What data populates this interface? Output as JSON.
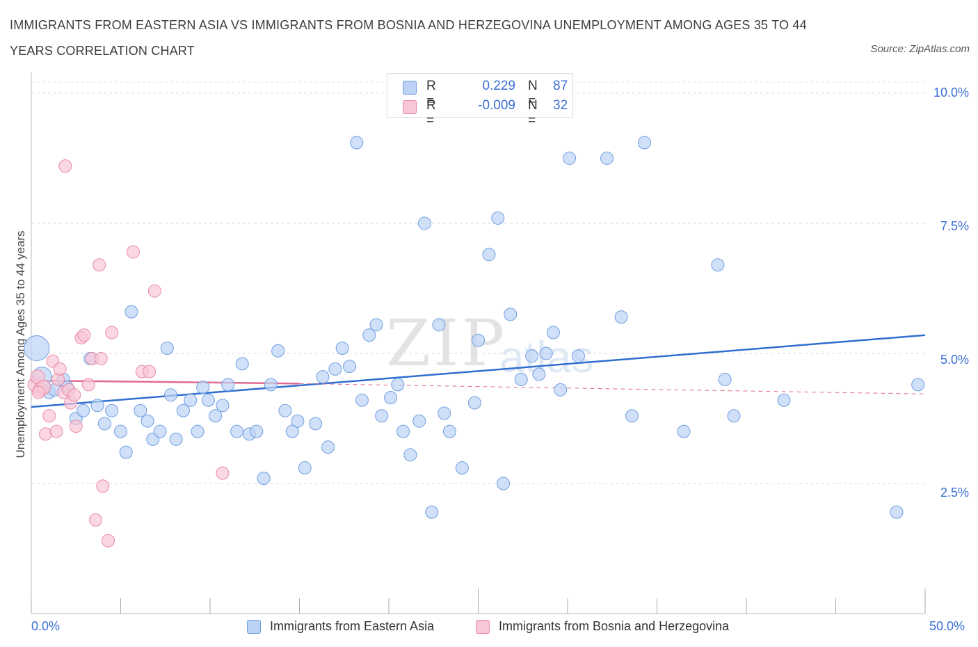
{
  "header": {
    "title": "IMMIGRANTS FROM EASTERN ASIA VS IMMIGRANTS FROM BOSNIA AND HERZEGOVINA UNEMPLOYMENT AMONG AGES 35 TO 44 YEARS CORRELATION CHART",
    "source": "Source: ZipAtlas.com"
  },
  "watermark": {
    "zip": "ZIP",
    "atlas": "atlas"
  },
  "legend": {
    "series1": {
      "r_label": "R =",
      "r_value": "0.229",
      "n_label": "N =",
      "n_value": "87"
    },
    "series2": {
      "r_label": "R =",
      "r_value": "-0.009",
      "n_label": "N =",
      "n_value": "32"
    }
  },
  "colors": {
    "blue_fill": "#bcd3f5",
    "blue_stroke": "#6f9ee0",
    "blue_line": "#2f6fd0",
    "pink_fill": "#f8c6d6",
    "pink_stroke": "#e98aa9",
    "pink_line": "#e06a92",
    "accent_text": "#3b6fd6"
  },
  "chart_data": {
    "type": "scatter",
    "title": "IMMIGRANTS FROM EASTERN ASIA VS IMMIGRANTS FROM BOSNIA AND HERZEGOVINA UNEMPLOYMENT AMONG AGES 35 TO 44 YEARS CORRELATION CHART",
    "xlabel": "",
    "ylabel": "Unemployment Among Ages 35 to 44 years",
    "xlim": [
      0,
      50
    ],
    "ylim": [
      0,
      10.4
    ],
    "x_tick_labels": [
      "0.0%",
      "50.0%"
    ],
    "y_tick_labels": [
      "2.5%",
      "5.0%",
      "7.5%",
      "10.0%"
    ],
    "y_ticks": [
      2.5,
      5.0,
      7.5,
      10.0
    ],
    "grid": true,
    "legend_position": "top-center",
    "series": [
      {
        "name": "Immigrants from Eastern Asia",
        "color": "#bcd3f5",
        "trend": {
          "x": [
            0,
            50
          ],
          "y": [
            3.97,
            5.35
          ]
        },
        "points": [
          [
            0.3,
            5.1,
            18
          ],
          [
            0.6,
            4.55,
            14
          ],
          [
            1.0,
            4.25,
            9
          ],
          [
            1.3,
            4.3,
            9
          ],
          [
            1.8,
            4.5,
            9
          ],
          [
            2.0,
            4.35,
            9
          ],
          [
            2.5,
            3.75,
            9
          ],
          [
            2.9,
            3.9,
            9
          ],
          [
            3.3,
            4.9,
            9
          ],
          [
            3.7,
            4.0,
            9
          ],
          [
            4.1,
            3.65,
            9
          ],
          [
            4.5,
            3.9,
            9
          ],
          [
            5.0,
            3.5,
            9
          ],
          [
            5.3,
            3.1,
            9
          ],
          [
            5.6,
            5.8,
            9
          ],
          [
            6.1,
            3.9,
            9
          ],
          [
            6.5,
            3.7,
            9
          ],
          [
            6.8,
            3.35,
            9
          ],
          [
            7.2,
            3.5,
            9
          ],
          [
            7.6,
            5.1,
            9
          ],
          [
            7.8,
            4.2,
            9
          ],
          [
            8.1,
            3.35,
            9
          ],
          [
            8.5,
            3.9,
            9
          ],
          [
            8.9,
            4.1,
            9
          ],
          [
            9.3,
            3.5,
            9
          ],
          [
            9.6,
            4.35,
            9
          ],
          [
            9.9,
            4.1,
            9
          ],
          [
            10.3,
            3.8,
            9
          ],
          [
            10.7,
            4.0,
            9
          ],
          [
            11.0,
            4.4,
            9
          ],
          [
            11.5,
            3.5,
            9
          ],
          [
            11.8,
            4.8,
            9
          ],
          [
            12.2,
            3.45,
            9
          ],
          [
            12.6,
            3.5,
            9
          ],
          [
            13.0,
            2.6,
            9
          ],
          [
            13.4,
            4.4,
            9
          ],
          [
            13.8,
            5.05,
            9
          ],
          [
            14.2,
            3.9,
            9
          ],
          [
            14.6,
            3.5,
            9
          ],
          [
            14.9,
            3.7,
            9
          ],
          [
            15.3,
            2.8,
            9
          ],
          [
            15.9,
            3.65,
            9
          ],
          [
            16.3,
            4.55,
            9
          ],
          [
            16.6,
            3.2,
            9
          ],
          [
            17.0,
            4.7,
            9
          ],
          [
            17.4,
            5.1,
            9
          ],
          [
            17.8,
            4.75,
            9
          ],
          [
            18.2,
            9.05,
            9
          ],
          [
            18.5,
            4.1,
            9
          ],
          [
            18.9,
            5.35,
            9
          ],
          [
            19.3,
            5.55,
            9
          ],
          [
            19.6,
            3.8,
            9
          ],
          [
            20.1,
            4.15,
            9
          ],
          [
            20.5,
            4.4,
            9
          ],
          [
            20.8,
            3.5,
            9
          ],
          [
            21.2,
            3.05,
            9
          ],
          [
            21.7,
            3.7,
            9
          ],
          [
            22.0,
            7.5,
            9
          ],
          [
            22.4,
            1.95,
            9
          ],
          [
            22.8,
            5.55,
            9
          ],
          [
            23.1,
            3.85,
            9
          ],
          [
            23.4,
            3.5,
            9
          ],
          [
            24.1,
            2.8,
            9
          ],
          [
            24.8,
            4.05,
            9
          ],
          [
            25.0,
            5.25,
            9
          ],
          [
            25.6,
            6.9,
            9
          ],
          [
            26.1,
            7.6,
            9
          ],
          [
            26.4,
            2.5,
            9
          ],
          [
            26.8,
            5.75,
            9
          ],
          [
            27.4,
            4.5,
            9
          ],
          [
            28.0,
            4.95,
            9
          ],
          [
            28.4,
            4.6,
            9
          ],
          [
            28.8,
            5.0,
            9
          ],
          [
            29.2,
            5.4,
            9
          ],
          [
            29.6,
            4.3,
            9
          ],
          [
            30.1,
            8.75,
            9
          ],
          [
            30.6,
            4.95,
            9
          ],
          [
            32.2,
            8.75,
            9
          ],
          [
            33.0,
            5.7,
            9
          ],
          [
            33.6,
            3.8,
            9
          ],
          [
            34.3,
            9.05,
            9
          ],
          [
            36.5,
            3.5,
            9
          ],
          [
            38.4,
            6.7,
            9
          ],
          [
            38.8,
            4.5,
            9
          ],
          [
            39.3,
            3.8,
            9
          ],
          [
            42.1,
            4.1,
            9
          ],
          [
            48.4,
            1.95,
            9
          ],
          [
            49.6,
            4.4,
            9
          ]
        ]
      },
      {
        "name": "Immigrants from Bosnia and Herzegovina",
        "color": "#f8c6d6",
        "trend": {
          "x": [
            0,
            15
          ],
          "y": [
            4.48,
            4.42
          ]
        },
        "trend_dashed": {
          "x": [
            15,
            50
          ],
          "y": [
            4.42,
            4.22
          ]
        },
        "points": [
          [
            0.2,
            4.4,
            10
          ],
          [
            0.35,
            4.55,
            10
          ],
          [
            0.5,
            4.3,
            10
          ],
          [
            0.7,
            4.35,
            10
          ],
          [
            0.8,
            3.45,
            9
          ],
          [
            1.0,
            3.8,
            9
          ],
          [
            1.2,
            4.85,
            9
          ],
          [
            1.4,
            3.5,
            9
          ],
          [
            1.5,
            4.5,
            9
          ],
          [
            1.6,
            4.7,
            9
          ],
          [
            1.8,
            4.25,
            9
          ],
          [
            1.9,
            8.6,
            9
          ],
          [
            2.1,
            4.3,
            9
          ],
          [
            2.2,
            4.05,
            9
          ],
          [
            2.4,
            4.2,
            9
          ],
          [
            2.5,
            3.6,
            9
          ],
          [
            2.8,
            5.3,
            9
          ],
          [
            2.95,
            5.35,
            9
          ],
          [
            3.2,
            4.4,
            9
          ],
          [
            3.4,
            4.9,
            9
          ],
          [
            3.6,
            1.8,
            9
          ],
          [
            3.8,
            6.7,
            9
          ],
          [
            3.9,
            4.9,
            9
          ],
          [
            4.0,
            2.45,
            9
          ],
          [
            4.3,
            1.4,
            9
          ],
          [
            4.5,
            5.4,
            9
          ],
          [
            5.7,
            6.95,
            9
          ],
          [
            6.2,
            4.65,
            9
          ],
          [
            6.6,
            4.65,
            9
          ],
          [
            6.9,
            6.2,
            9
          ],
          [
            10.7,
            2.7,
            9
          ],
          [
            0.4,
            4.25,
            9
          ]
        ]
      }
    ]
  },
  "bottom_legend": {
    "item1": "Immigrants from Eastern Asia",
    "item2": "Immigrants from Bosnia and Herzegovina"
  },
  "axis": {
    "x_min_label": "0.0%",
    "x_max_label": "50.0%",
    "y_labels": [
      "10.0%",
      "7.5%",
      "5.0%",
      "2.5%"
    ]
  }
}
